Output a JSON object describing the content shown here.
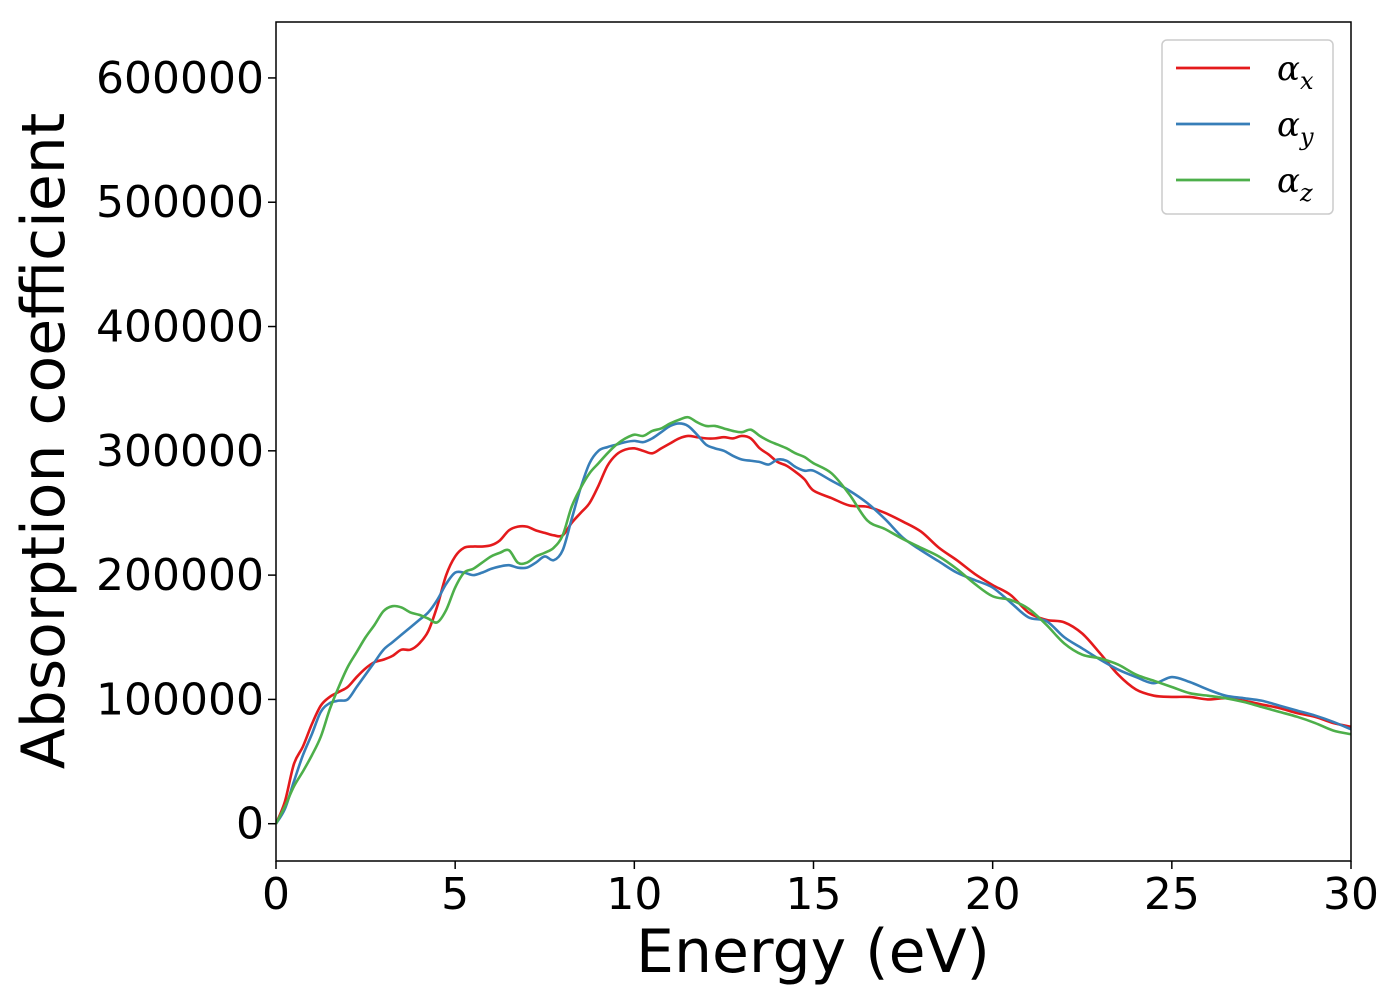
{
  "chart_data": {
    "type": "line",
    "title": "",
    "xlabel": "Energy (eV)",
    "ylabel": "Absorption coefficient",
    "xlim": [
      0,
      30
    ],
    "ylim": [
      -30000,
      645000
    ],
    "xticks": [
      0,
      5,
      10,
      15,
      20,
      25,
      30
    ],
    "xtick_labels": [
      "0",
      "5",
      "10",
      "15",
      "20",
      "25",
      "30"
    ],
    "yticks": [
      0,
      100000,
      200000,
      300000,
      400000,
      500000,
      600000
    ],
    "ytick_labels": [
      "0",
      "100000",
      "200000",
      "300000",
      "400000",
      "500000",
      "600000"
    ],
    "grid": false,
    "legend_position": "top-right",
    "x": [
      0,
      0.25,
      0.5,
      0.75,
      1,
      1.25,
      1.5,
      1.75,
      2,
      2.25,
      2.5,
      2.75,
      3,
      3.25,
      3.5,
      3.75,
      4,
      4.25,
      4.5,
      4.75,
      5,
      5.25,
      5.5,
      5.75,
      6,
      6.25,
      6.5,
      6.75,
      7,
      7.25,
      7.5,
      7.75,
      8,
      8.25,
      8.5,
      8.75,
      9,
      9.25,
      9.5,
      9.75,
      10,
      10.25,
      10.5,
      10.75,
      11,
      11.25,
      11.5,
      11.75,
      12,
      12.25,
      12.5,
      12.75,
      13,
      13.25,
      13.5,
      13.75,
      14,
      14.25,
      14.5,
      14.75,
      15,
      15.5,
      16,
      16.5,
      17,
      17.5,
      18,
      18.5,
      19,
      19.5,
      20,
      20.5,
      21,
      21.5,
      22,
      22.5,
      23,
      23.5,
      24,
      24.5,
      25,
      25.5,
      26,
      26.5,
      27,
      27.5,
      28,
      28.5,
      29,
      29.5,
      30
    ],
    "series": [
      {
        "name": "αx",
        "color": "#e41a1c",
        "values": [
          0,
          18000,
          48000,
          62000,
          80000,
          95000,
          102000,
          106000,
          110000,
          118000,
          125000,
          130000,
          132000,
          135000,
          140000,
          140000,
          145000,
          155000,
          175000,
          200000,
          215000,
          222000,
          223000,
          223000,
          224000,
          228000,
          236000,
          239000,
          239000,
          236000,
          234000,
          232000,
          232000,
          242000,
          250000,
          258000,
          272000,
          288000,
          297000,
          301000,
          302000,
          300000,
          298000,
          302000,
          306000,
          310000,
          312000,
          311000,
          310000,
          310000,
          311000,
          310000,
          312000,
          310000,
          302000,
          297000,
          291000,
          288000,
          283000,
          277000,
          268000,
          262000,
          256000,
          255000,
          250000,
          243000,
          235000,
          222000,
          212000,
          201000,
          192000,
          184000,
          170000,
          164000,
          162000,
          153000,
          137000,
          120000,
          108000,
          103000,
          102000,
          102000,
          100000,
          101000,
          99000,
          96000,
          93000,
          89000,
          86000,
          81000,
          78000
        ]
      },
      {
        "name": "αy",
        "color": "#377eb8",
        "values": [
          0,
          12000,
          34000,
          55000,
          72000,
          90000,
          97000,
          99000,
          100000,
          110000,
          120000,
          130000,
          140000,
          146000,
          152000,
          158000,
          164000,
          170000,
          180000,
          193000,
          202000,
          202000,
          200000,
          202000,
          205000,
          207000,
          208000,
          206000,
          206000,
          210000,
          215000,
          212000,
          220000,
          245000,
          270000,
          290000,
          300000,
          303000,
          305000,
          307000,
          308000,
          307000,
          310000,
          315000,
          320000,
          322000,
          320000,
          313000,
          305000,
          302000,
          300000,
          296000,
          293000,
          292000,
          291000,
          289000,
          293000,
          292000,
          287000,
          284000,
          284000,
          276000,
          268000,
          258000,
          245000,
          230000,
          220000,
          211000,
          202000,
          196000,
          190000,
          178000,
          166000,
          163000,
          150000,
          141000,
          132000,
          124000,
          118000,
          113000,
          118000,
          114000,
          108000,
          103000,
          101000,
          99000,
          95000,
          91000,
          87000,
          82000,
          76000
        ]
      },
      {
        "name": "αz",
        "color": "#4daf4a",
        "values": [
          0,
          14000,
          30000,
          42000,
          55000,
          70000,
          92000,
          110000,
          126000,
          138000,
          150000,
          160000,
          171000,
          175000,
          174000,
          170000,
          168000,
          165000,
          162000,
          172000,
          190000,
          202000,
          205000,
          210000,
          215000,
          218000,
          220000,
          210000,
          210000,
          215000,
          218000,
          222000,
          232000,
          255000,
          270000,
          282000,
          290000,
          298000,
          305000,
          310000,
          313000,
          312000,
          316000,
          318000,
          322000,
          325000,
          327000,
          323000,
          320000,
          320000,
          318000,
          316000,
          315000,
          317000,
          312000,
          308000,
          305000,
          302000,
          298000,
          295000,
          290000,
          282000,
          265000,
          244000,
          237000,
          229000,
          222000,
          215000,
          205000,
          193000,
          183000,
          180000,
          173000,
          160000,
          145000,
          136000,
          133000,
          128000,
          120000,
          115000,
          110000,
          105000,
          103000,
          101000,
          98000,
          94000,
          90000,
          86000,
          81000,
          75000,
          72000
        ]
      }
    ]
  }
}
